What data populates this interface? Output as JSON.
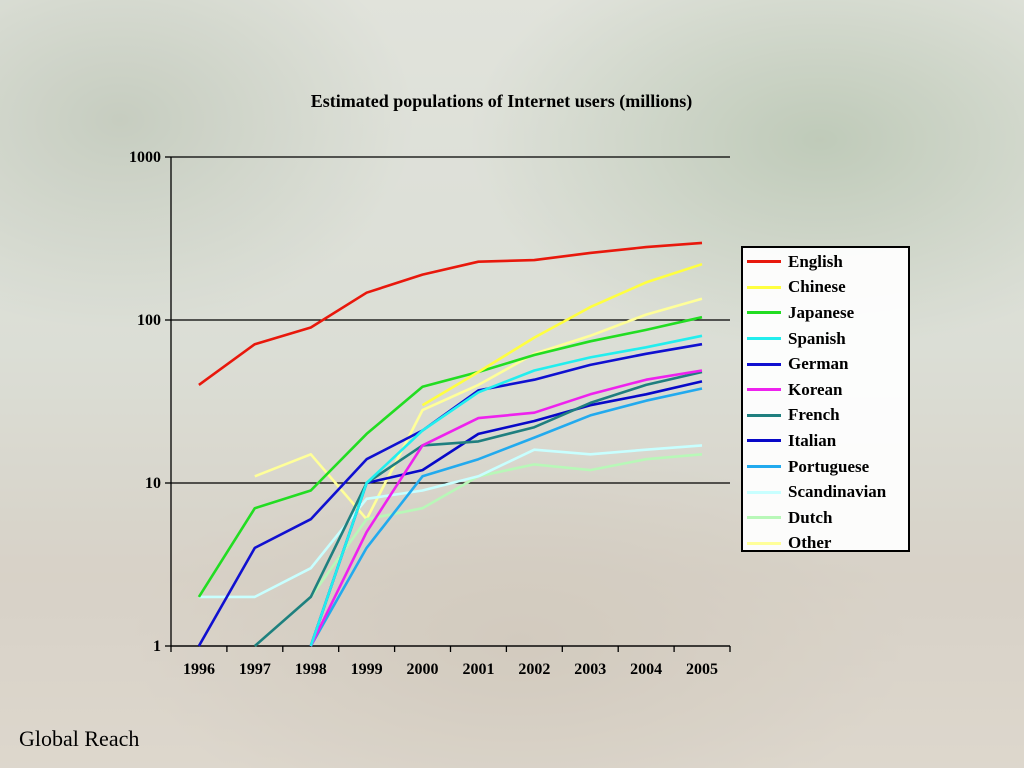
{
  "footer": "Global Reach",
  "chart_data": {
    "type": "line",
    "title": "Estimated populations of Internet users (millions)",
    "xlabel": "",
    "ylabel": "",
    "yscale": "log",
    "ylim": [
      1,
      1000
    ],
    "yticks": [
      "1",
      "10",
      "100",
      "1000"
    ],
    "grid": "horizontal",
    "legend_position": "right",
    "x": [
      "1996",
      "1997",
      "1998",
      "1999",
      "2000",
      "2001",
      "2002",
      "2003",
      "2004",
      "2005"
    ],
    "series": [
      {
        "name": "English",
        "color": "#e8180c",
        "values": [
          40,
          71,
          90,
          147,
          190,
          228,
          233,
          258,
          280,
          297
        ]
      },
      {
        "name": "Chinese",
        "color": "#ffff40",
        "values": [
          null,
          null,
          null,
          null,
          30,
          48,
          78,
          120,
          170,
          220
        ]
      },
      {
        "name": "Japanese",
        "color": "#22dd22",
        "values": [
          2,
          7,
          9,
          20,
          39,
          48,
          61,
          74,
          87,
          104
        ]
      },
      {
        "name": "Spanish",
        "color": "#22eeee",
        "values": [
          null,
          null,
          1,
          10,
          21,
          36,
          49,
          59,
          68,
          80
        ]
      },
      {
        "name": "German",
        "color": "#1010d0",
        "values": [
          1,
          4,
          6,
          14,
          21,
          37,
          43,
          53,
          62,
          71
        ]
      },
      {
        "name": "Korean",
        "color": "#ee22ee",
        "values": [
          null,
          null,
          1,
          5,
          17,
          25,
          27,
          35,
          43,
          49
        ]
      },
      {
        "name": "French",
        "color": "#1f7f7f",
        "values": [
          null,
          1,
          2,
          10,
          17,
          18,
          22,
          31,
          40,
          48
        ]
      },
      {
        "name": "Italian",
        "color": "#0808c8",
        "values": [
          null,
          null,
          1,
          10,
          12,
          20,
          24,
          30,
          35,
          42
        ]
      },
      {
        "name": "Portuguese",
        "color": "#22aaee",
        "values": [
          null,
          null,
          1,
          4,
          11,
          14,
          19,
          26,
          32,
          38
        ]
      },
      {
        "name": "Scandinavian",
        "color": "#c8ffff",
        "values": [
          2,
          2,
          3,
          8,
          9,
          11,
          16,
          15,
          16,
          17
        ]
      },
      {
        "name": "Dutch",
        "color": "#b8f8b8",
        "values": [
          null,
          1,
          2,
          6,
          7,
          11,
          13,
          12,
          14,
          15
        ]
      },
      {
        "name": "Other",
        "color": "#ffff99",
        "values": [
          null,
          11,
          15,
          6,
          28,
          40,
          62,
          80,
          108,
          135
        ]
      }
    ]
  }
}
